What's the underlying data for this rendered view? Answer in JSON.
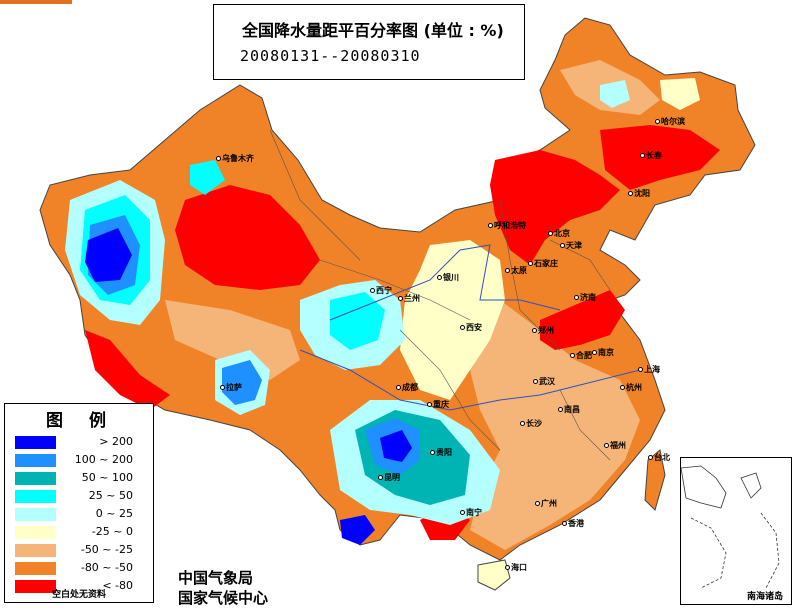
{
  "title": {
    "main": "全国降水量距平百分率图 (单位 : %)",
    "dates": "20080131--20080310"
  },
  "legend": {
    "heading": "图例",
    "items": [
      {
        "label": "> 200",
        "color": "#0000ff"
      },
      {
        "label": "100 ~ 200",
        "color": "#1e90ff"
      },
      {
        "label": "50 ~ 100",
        "color": "#00b4b4"
      },
      {
        "label": "25 ~ 50",
        "color": "#00ffff"
      },
      {
        "label": "0 ~ 25",
        "color": "#b4ffff"
      },
      {
        "label": "-25 ~ 0",
        "color": "#ffffc8"
      },
      {
        "label": "-50 ~ -25",
        "color": "#f5b478"
      },
      {
        "label": "-80 ~ -50",
        "color": "#f08228"
      },
      {
        "label": "< -80",
        "color": "#ff0000"
      }
    ],
    "note": "空白处无资料"
  },
  "agency": {
    "line1": "中国气象局",
    "line2": "国家气候中心"
  },
  "inset": {
    "label": "南海诸岛"
  },
  "cities": {
    "urumqi": "乌鲁木齐",
    "lhasa": "拉萨",
    "xining": "西宁",
    "lanzhou": "兰州",
    "yinchuan": "银川",
    "hohhot": "呼和浩特",
    "beijing": "北京",
    "tianjin": "天津",
    "shijiazhuang": "石家庄",
    "taiyuan": "太原",
    "jinan": "济南",
    "zhengzhou": "郑州",
    "xian": "西安",
    "chengdu": "成都",
    "chongqing": "重庆",
    "guiyang": "贵阳",
    "kunming": "昆明",
    "nanning": "南宁",
    "guangzhou": "广州",
    "hongkong": "香港",
    "haikou": "海口",
    "changsha": "长沙",
    "wuhan": "武汉",
    "hefei": "合肥",
    "nanjing": "南京",
    "shanghai": "上海",
    "hangzhou": "杭州",
    "nanchang": "南昌",
    "fuzhou": "福州",
    "taibei": "台北",
    "shenyang": "沈阳",
    "changchun": "长春",
    "harbin": "哈尔滨"
  }
}
